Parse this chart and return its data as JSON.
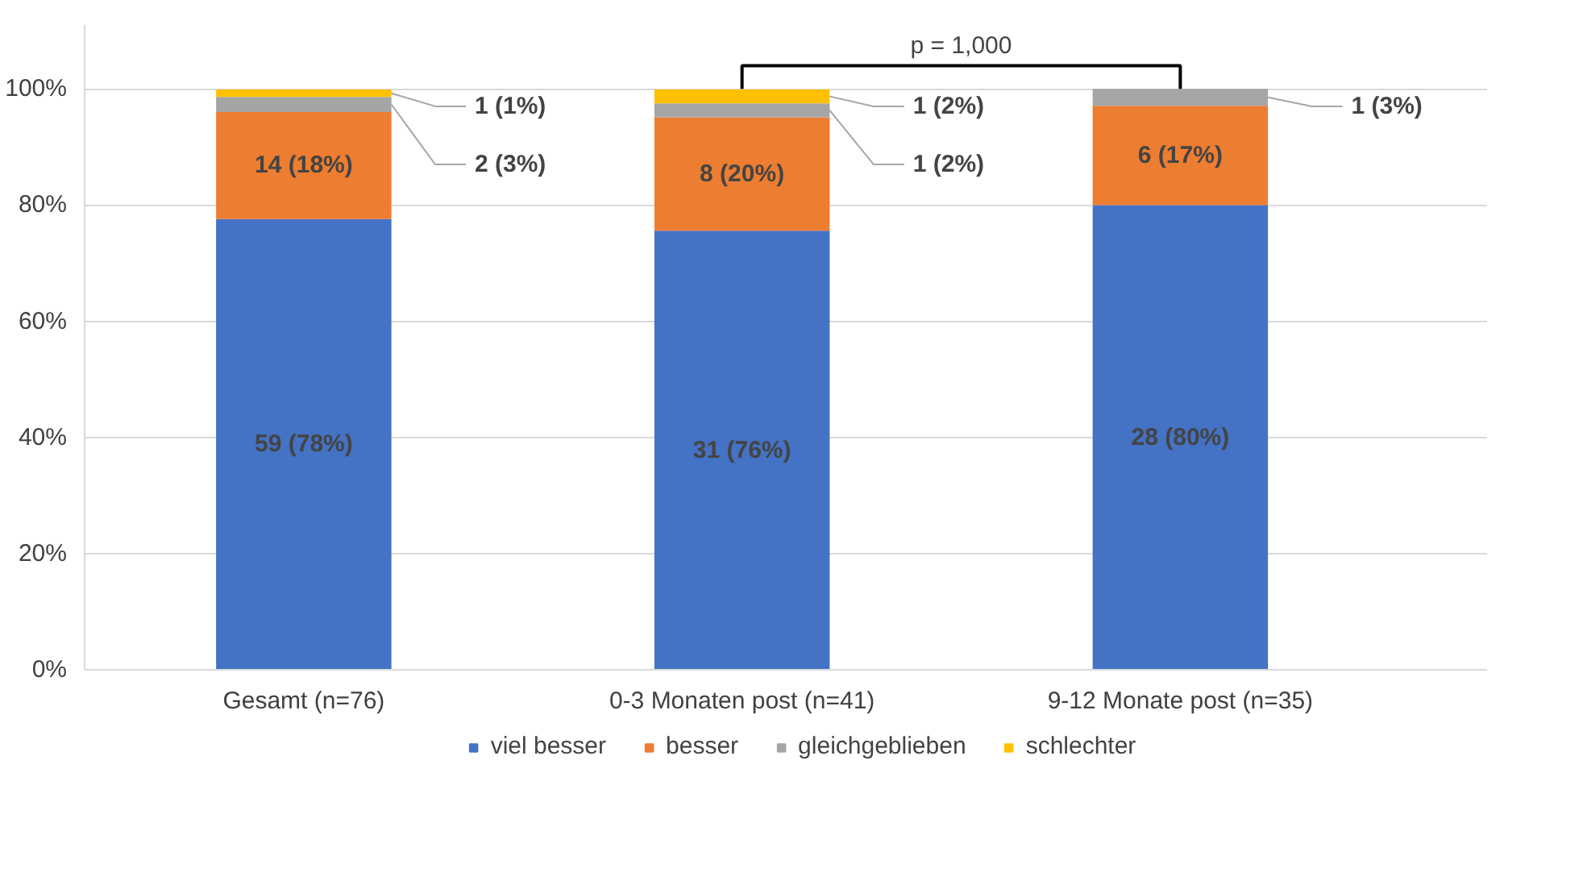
{
  "chart_data": {
    "type": "bar",
    "stacked": true,
    "categories": [
      "Gesamt (n=76)",
      "0-3 Monaten post (n=41)",
      "9-12 Monate post (n=35)"
    ],
    "series": [
      {
        "name": "viel besser",
        "color": "#4472c4",
        "values": [
          77.6,
          75.6,
          80.0
        ],
        "value_labels": [
          "59 (78%)",
          "31 (76%)",
          "28 (80%)"
        ]
      },
      {
        "name": "besser",
        "color": "#ed7d31",
        "values": [
          18.4,
          19.5,
          17.1
        ],
        "value_labels": [
          "14 (18%)",
          "8 (20%)",
          "6 (17%)"
        ]
      },
      {
        "name": "gleichgeblieben",
        "color": "#a5a5a5",
        "values": [
          2.6,
          2.4,
          2.9
        ],
        "value_labels": [
          "2 (3%)",
          "1 (2%)",
          "1 (3%)"
        ]
      },
      {
        "name": "schlechter",
        "color": "#ffc000",
        "values": [
          1.3,
          2.4,
          0
        ],
        "value_labels": [
          "1 (1%)",
          "1 (2%)",
          null
        ]
      }
    ],
    "ylim": [
      0,
      111
    ],
    "yticks": [
      {
        "value": 0,
        "label": "0%"
      },
      {
        "value": 20,
        "label": "20%"
      },
      {
        "value": 40,
        "label": "40%"
      },
      {
        "value": 60,
        "label": "60%"
      },
      {
        "value": 80,
        "label": "80%"
      },
      {
        "value": 100,
        "label": "100%"
      }
    ],
    "grid": "y",
    "legend": "bottom",
    "annotations": [
      "p = 1,000"
    ]
  }
}
